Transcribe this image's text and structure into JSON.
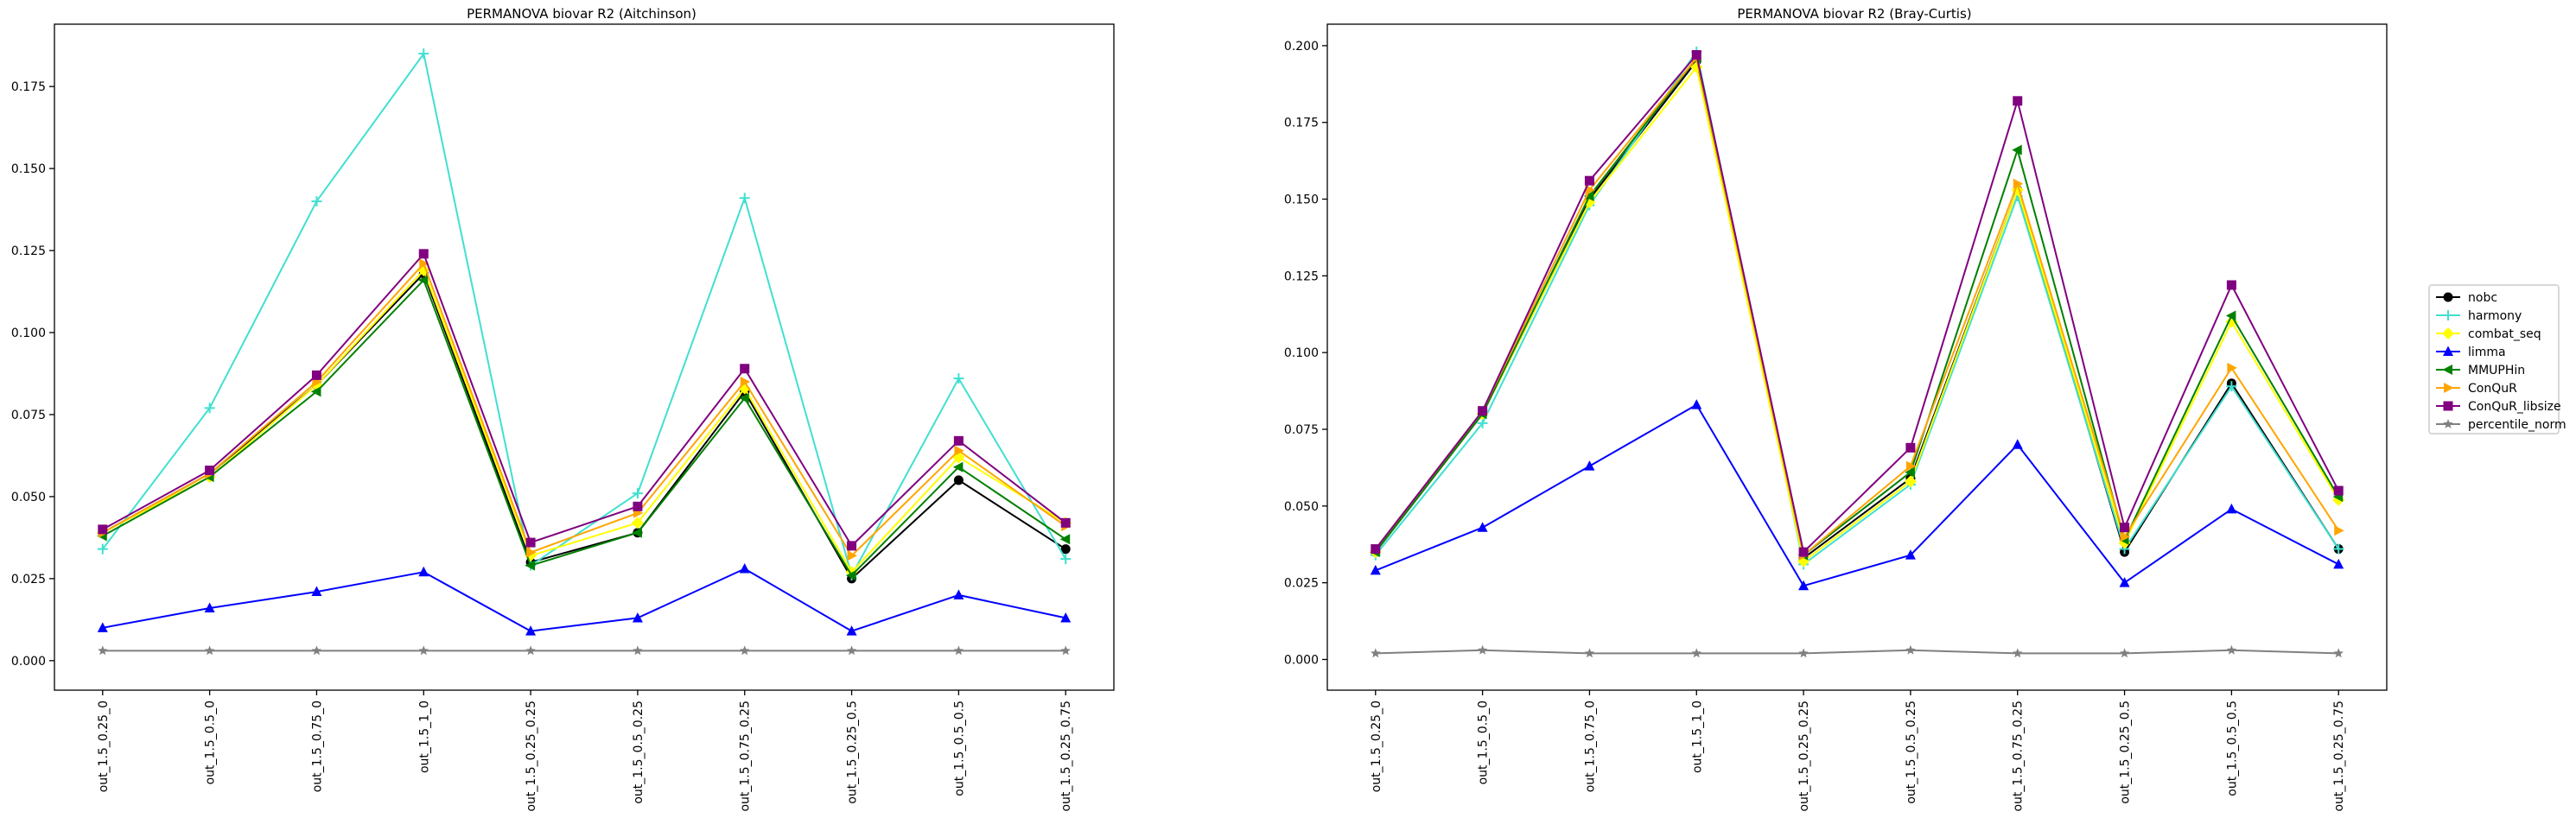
{
  "chart_data": [
    {
      "type": "line",
      "title": "PERMANOVA biovar R2 (Aitchinson)",
      "xlabel": "",
      "ylabel": "",
      "categories": [
        "out_1.5_0.25_0",
        "out_1.5_0.5_0",
        "out_1.5_0.75_0",
        "out_1.5_1_0",
        "out_1.5_0.25_0.25",
        "out_1.5_0.5_0.25",
        "out_1.5_0.75_0.25",
        "out_1.5_0.25_0.5",
        "out_1.5_0.5_0.5",
        "out_1.5_0.25_0.75"
      ],
      "ylim": [
        -0.009,
        0.194
      ],
      "yticks": [
        "0.000",
        "0.025",
        "0.050",
        "0.075",
        "0.100",
        "0.125",
        "0.150",
        "0.175"
      ],
      "grid": false,
      "series": [
        {
          "name": "nobc",
          "color": "#000000",
          "marker": "circle",
          "values": [
            0.039,
            0.057,
            0.084,
            0.118,
            0.03,
            0.039,
            0.082,
            0.025,
            0.055,
            0.034
          ]
        },
        {
          "name": "harmony",
          "color": "#40e0d0",
          "marker": "plus",
          "values": [
            0.034,
            0.077,
            0.14,
            0.185,
            0.029,
            0.051,
            0.141,
            0.026,
            0.086,
            0.031
          ]
        },
        {
          "name": "combat_seq",
          "color": "#ffff00",
          "marker": "diamond",
          "values": [
            0.039,
            0.056,
            0.084,
            0.119,
            0.032,
            0.042,
            0.083,
            0.027,
            0.062,
            0.042
          ]
        },
        {
          "name": "limma",
          "color": "#0000ff",
          "marker": "triangle-up",
          "values": [
            0.01,
            0.016,
            0.021,
            0.027,
            0.009,
            0.013,
            0.028,
            0.009,
            0.02,
            0.013
          ]
        },
        {
          "name": "MMUPHin",
          "color": "#008000",
          "marker": "triangle-left",
          "values": [
            0.038,
            0.056,
            0.082,
            0.116,
            0.029,
            0.039,
            0.08,
            0.026,
            0.059,
            0.037
          ]
        },
        {
          "name": "ConQuR",
          "color": "#ffa500",
          "marker": "triangle-right",
          "values": [
            0.039,
            0.057,
            0.085,
            0.121,
            0.033,
            0.045,
            0.085,
            0.032,
            0.064,
            0.041
          ]
        },
        {
          "name": "ConQuR_libsize",
          "color": "#800080",
          "marker": "square",
          "values": [
            0.04,
            0.058,
            0.087,
            0.124,
            0.036,
            0.047,
            0.089,
            0.035,
            0.067,
            0.042
          ]
        },
        {
          "name": "percentile_norm",
          "color": "#808080",
          "marker": "star",
          "values": [
            0.003,
            0.003,
            0.003,
            0.003,
            0.003,
            0.003,
            0.003,
            0.003,
            0.003,
            0.003
          ]
        }
      ]
    },
    {
      "type": "line",
      "title": "PERMANOVA biovar R2 (Bray-Curtis)",
      "xlabel": "",
      "ylabel": "",
      "categories": [
        "out_1.5_0.25_0",
        "out_1.5_0.5_0",
        "out_1.5_0.75_0",
        "out_1.5_1_0",
        "out_1.5_0.25_0.25",
        "out_1.5_0.5_0.25",
        "out_1.5_0.75_0.25",
        "out_1.5_0.25_0.5",
        "out_1.5_0.5_0.5",
        "out_1.5_0.25_0.75"
      ],
      "ylim": [
        -0.01,
        0.207
      ],
      "yticks": [
        "0.000",
        "0.025",
        "0.050",
        "0.075",
        "0.100",
        "0.125",
        "0.150",
        "0.175",
        "0.200"
      ],
      "grid": false,
      "series": [
        {
          "name": "nobc",
          "color": "#000000",
          "marker": "circle",
          "values": [
            0.035,
            0.08,
            0.15,
            0.195,
            0.033,
            0.059,
            0.153,
            0.035,
            0.09,
            0.036
          ]
        },
        {
          "name": "harmony",
          "color": "#40e0d0",
          "marker": "plus",
          "values": [
            0.034,
            0.077,
            0.148,
            0.198,
            0.031,
            0.057,
            0.151,
            0.036,
            0.089,
            0.036
          ]
        },
        {
          "name": "combat_seq",
          "color": "#ffff00",
          "marker": "diamond",
          "values": [
            0.035,
            0.08,
            0.149,
            0.193,
            0.032,
            0.058,
            0.153,
            0.038,
            0.11,
            0.052
          ]
        },
        {
          "name": "limma",
          "color": "#0000ff",
          "marker": "triangle-up",
          "values": [
            0.029,
            0.043,
            0.063,
            0.083,
            0.024,
            0.034,
            0.07,
            0.025,
            0.049,
            0.031
          ]
        },
        {
          "name": "MMUPHin",
          "color": "#008000",
          "marker": "triangle-left",
          "values": [
            0.035,
            0.08,
            0.151,
            0.196,
            0.034,
            0.061,
            0.166,
            0.039,
            0.112,
            0.053
          ]
        },
        {
          "name": "ConQuR",
          "color": "#ffa500",
          "marker": "triangle-right",
          "values": [
            0.036,
            0.081,
            0.153,
            0.196,
            0.034,
            0.063,
            0.155,
            0.04,
            0.095,
            0.042
          ]
        },
        {
          "name": "ConQuR_libsize",
          "color": "#800080",
          "marker": "square",
          "values": [
            0.036,
            0.081,
            0.156,
            0.197,
            0.035,
            0.069,
            0.182,
            0.043,
            0.122,
            0.055
          ]
        },
        {
          "name": "percentile_norm",
          "color": "#808080",
          "marker": "star",
          "values": [
            0.002,
            0.003,
            0.002,
            0.002,
            0.002,
            0.003,
            0.002,
            0.002,
            0.003,
            0.002
          ]
        }
      ]
    }
  ],
  "legend": {
    "placement": "center-right",
    "entries": [
      {
        "label": "nobc",
        "color": "#000000",
        "marker": "circle"
      },
      {
        "label": "harmony",
        "color": "#40e0d0",
        "marker": "plus"
      },
      {
        "label": "combat_seq",
        "color": "#ffff00",
        "marker": "diamond"
      },
      {
        "label": "limma",
        "color": "#0000ff",
        "marker": "triangle-up"
      },
      {
        "label": "MMUPHin",
        "color": "#008000",
        "marker": "triangle-left"
      },
      {
        "label": "ConQuR",
        "color": "#ffa500",
        "marker": "triangle-right"
      },
      {
        "label": "ConQuR_libsize",
        "color": "#800080",
        "marker": "square"
      },
      {
        "label": "percentile_norm",
        "color": "#808080",
        "marker": "star"
      }
    ]
  }
}
